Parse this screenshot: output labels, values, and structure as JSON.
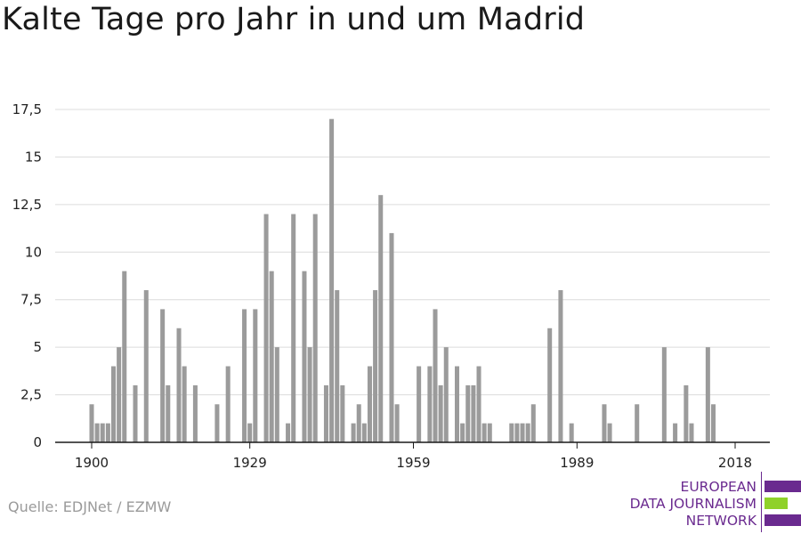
{
  "title": "Kalte Tage pro Jahr in und um Madrid",
  "source": "Quelle: EDJNet / EZMW",
  "logo": {
    "lines": [
      "EUROPEAN",
      "DATA JOURNALISM",
      "NETWORK"
    ],
    "colors": [
      "#6a2a8f",
      "#8fd12a",
      "#6a2a8f"
    ]
  },
  "colors": {
    "bar": "#9b9b9b",
    "grid": "#dcdcdc",
    "axis": "#1a1a1a",
    "tick_text": "#222222"
  },
  "chart_data": {
    "type": "bar",
    "title": "Kalte Tage pro Jahr in und um Madrid",
    "xlabel": "",
    "ylabel": "",
    "ylim": [
      0,
      17.5
    ],
    "y_ticks": [
      0,
      2.5,
      5,
      7.5,
      10,
      12.5,
      15,
      17.5
    ],
    "y_tick_labels": [
      "0",
      "2,5",
      "5",
      "7,5",
      "10",
      "12,5",
      "15",
      "17,5"
    ],
    "x_ticks": [
      1900,
      1929,
      1959,
      1989,
      2018
    ],
    "x_tick_labels": [
      "1900",
      "1929",
      "1959",
      "1989",
      "2018"
    ],
    "xlim": [
      1900,
      2018
    ],
    "grid": true,
    "x": [
      1900,
      1901,
      1902,
      1903,
      1904,
      1905,
      1906,
      1907,
      1908,
      1909,
      1910,
      1911,
      1912,
      1913,
      1914,
      1915,
      1916,
      1917,
      1918,
      1919,
      1920,
      1921,
      1922,
      1923,
      1924,
      1925,
      1926,
      1927,
      1928,
      1929,
      1930,
      1931,
      1932,
      1933,
      1934,
      1935,
      1936,
      1937,
      1938,
      1939,
      1940,
      1941,
      1942,
      1943,
      1944,
      1945,
      1946,
      1947,
      1948,
      1949,
      1950,
      1951,
      1952,
      1953,
      1954,
      1955,
      1956,
      1957,
      1958,
      1959,
      1960,
      1961,
      1962,
      1963,
      1964,
      1965,
      1966,
      1967,
      1968,
      1969,
      1970,
      1971,
      1972,
      1973,
      1974,
      1975,
      1976,
      1977,
      1978,
      1979,
      1980,
      1981,
      1982,
      1983,
      1984,
      1985,
      1986,
      1987,
      1988,
      1989,
      1990,
      1991,
      1992,
      1993,
      1994,
      1995,
      1996,
      1997,
      1998,
      1999,
      2000,
      2001,
      2002,
      2003,
      2004,
      2005,
      2006,
      2007,
      2008,
      2009,
      2010,
      2011,
      2012,
      2013,
      2014,
      2015,
      2016,
      2017,
      2018
    ],
    "values": [
      2,
      1,
      1,
      1,
      4,
      5,
      9,
      0,
      3,
      0,
      8,
      0,
      0,
      7,
      3,
      0,
      6,
      4,
      0,
      3,
      0,
      0,
      0,
      2,
      0,
      4,
      0,
      0,
      7,
      1,
      7,
      0,
      12,
      9,
      5,
      0,
      1,
      12,
      0,
      9,
      5,
      12,
      0,
      3,
      17,
      8,
      3,
      0,
      1,
      2,
      1,
      4,
      8,
      13,
      0,
      11,
      2,
      0,
      0,
      0,
      4,
      0,
      4,
      7,
      3,
      5,
      0,
      4,
      1,
      3,
      3,
      4,
      1,
      1,
      0,
      0,
      0,
      1,
      1,
      1,
      1,
      2,
      0,
      0,
      6,
      0,
      8,
      0,
      1,
      0,
      0,
      0,
      0,
      0,
      2,
      1,
      0,
      0,
      0,
      0,
      2,
      0,
      0,
      0,
      0,
      5,
      0,
      1,
      0,
      3,
      1,
      0,
      0,
      5,
      2,
      0,
      0,
      0,
      0
    ]
  }
}
